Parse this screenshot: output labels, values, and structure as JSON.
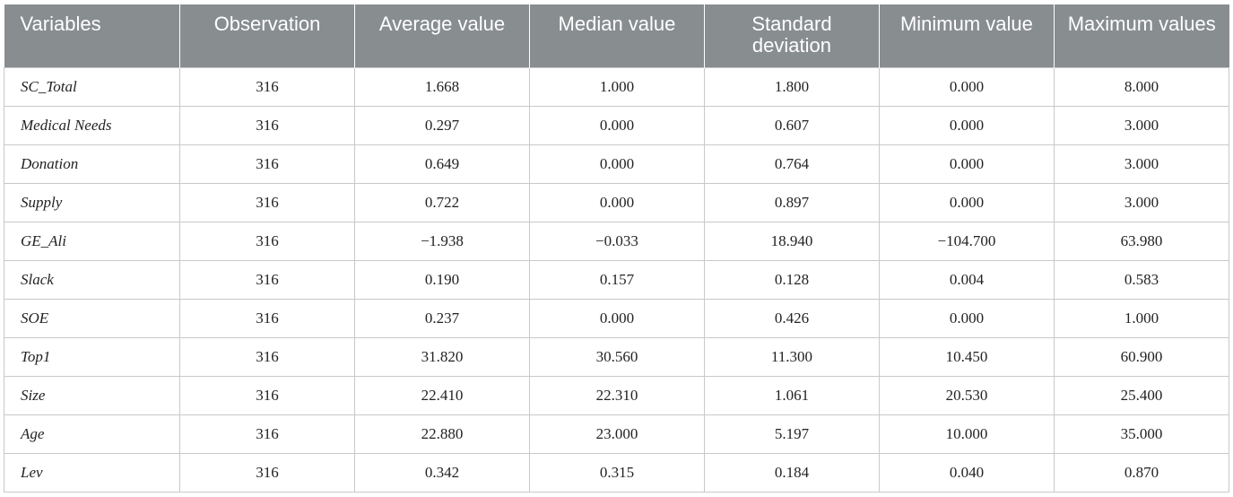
{
  "table": {
    "headers": [
      "Variables",
      "Observation",
      "Average value",
      "Median value",
      "Standard deviation",
      "Minimum value",
      "Maximum values"
    ],
    "rows": [
      [
        "SC_Total",
        "316",
        "1.668",
        "1.000",
        "1.800",
        "0.000",
        "8.000"
      ],
      [
        "Medical Needs",
        "316",
        "0.297",
        "0.000",
        "0.607",
        "0.000",
        "3.000"
      ],
      [
        "Donation",
        "316",
        "0.649",
        "0.000",
        "0.764",
        "0.000",
        "3.000"
      ],
      [
        "Supply",
        "316",
        "0.722",
        "0.000",
        "0.897",
        "0.000",
        "3.000"
      ],
      [
        "GE_Ali",
        "316",
        "−1.938",
        "−0.033",
        "18.940",
        "−104.700",
        "63.980"
      ],
      [
        "Slack",
        "316",
        "0.190",
        "0.157",
        "0.128",
        "0.004",
        "0.583"
      ],
      [
        "SOE",
        "316",
        "0.237",
        "0.000",
        "0.426",
        "0.000",
        "1.000"
      ],
      [
        "Top1",
        "316",
        "31.820",
        "30.560",
        "11.300",
        "10.450",
        "60.900"
      ],
      [
        "Size",
        "316",
        "22.410",
        "22.310",
        "1.061",
        "20.530",
        "25.400"
      ],
      [
        "Age",
        "316",
        "22.880",
        "23.000",
        "5.197",
        "10.000",
        "35.000"
      ],
      [
        "Lev",
        "316",
        "0.342",
        "0.315",
        "0.184",
        "0.040",
        "0.870"
      ]
    ]
  }
}
